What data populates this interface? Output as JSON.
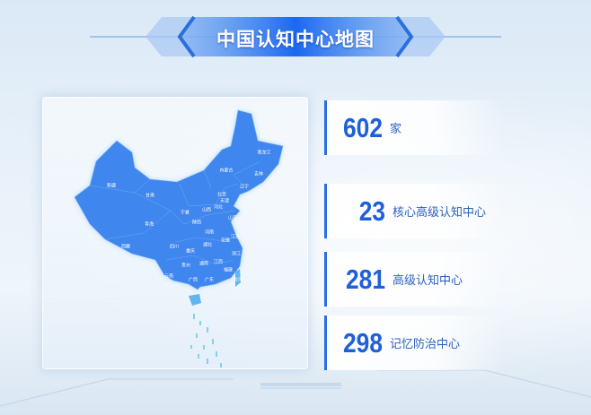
{
  "title": "中国认知中心地图",
  "map": {
    "provinces": [
      "新疆",
      "西藏",
      "青海",
      "甘肃",
      "内蒙古",
      "黑龙江",
      "吉林",
      "辽宁",
      "北京",
      "天津",
      "河北",
      "山西",
      "宁夏",
      "陕西",
      "山东",
      "河南",
      "江苏",
      "安徽",
      "湖北",
      "四川",
      "重庆",
      "贵州",
      "湖南",
      "江西",
      "浙江",
      "福建",
      "云南",
      "广西",
      "广东",
      "台湾"
    ],
    "fill_color": "#3f86ee"
  },
  "stats": [
    {
      "value": "602",
      "label": "家"
    },
    {
      "value": "23",
      "label": "核心高级认知中心"
    },
    {
      "value": "281",
      "label": "高级认知中心"
    },
    {
      "value": "298",
      "label": "记忆防治中心"
    }
  ],
  "colors": {
    "accent": "#1f5fd8",
    "banner": "#1e6cf0"
  }
}
